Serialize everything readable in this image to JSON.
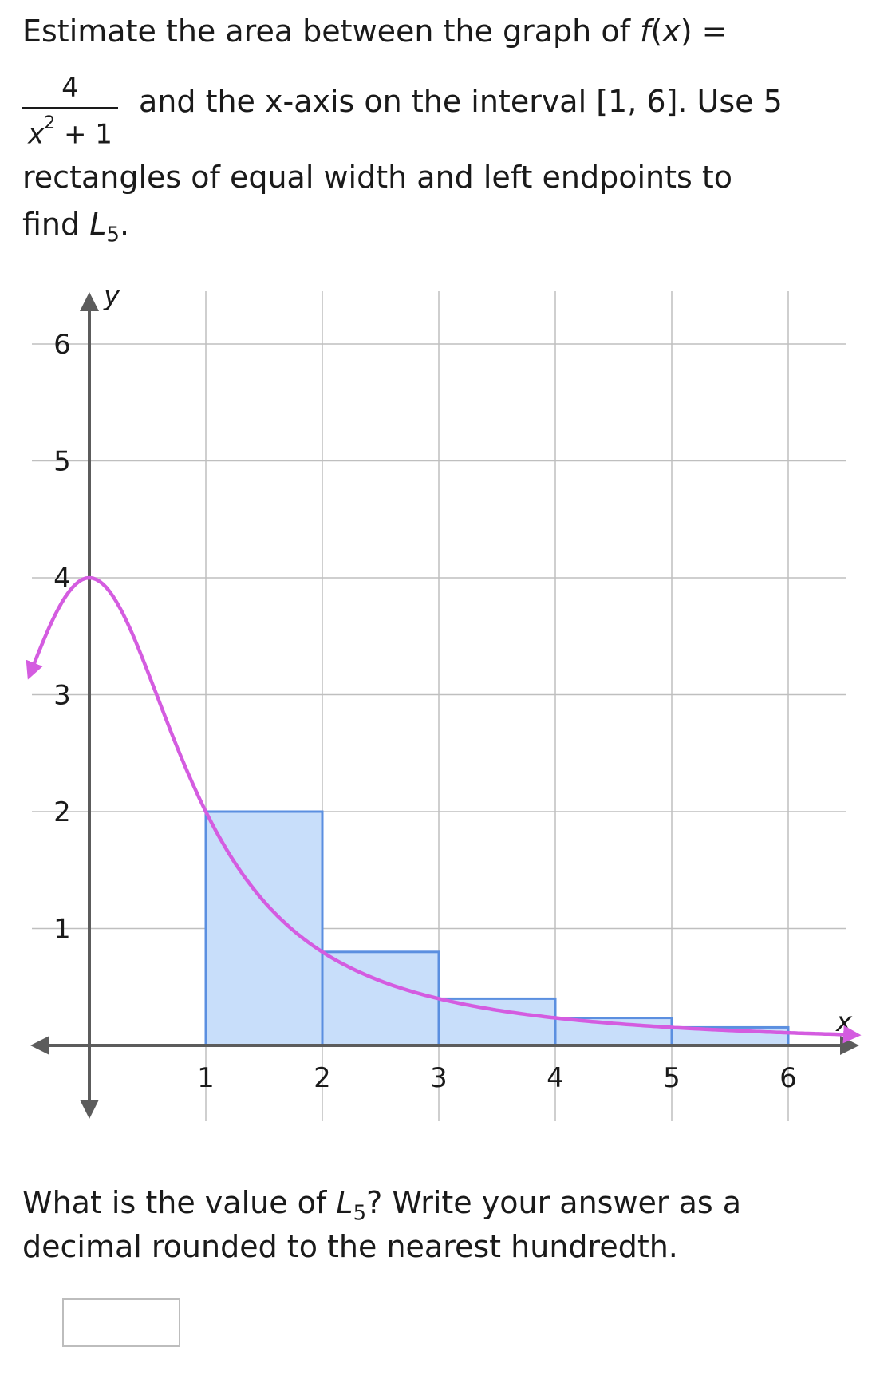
{
  "question": {
    "line1_prefix": "Estimate the area between the graph of ",
    "fx": "f",
    "fx_open": "(",
    "fx_var": "x",
    "fx_close": ") =",
    "frac_num": "4",
    "frac_den_var": "x",
    "frac_den_exp": "2",
    "frac_den_rest": " + 1",
    "line2_text": "and the x-axis on the interval [1, 6]. Use 5",
    "line3_text": "rectangles of equal width and left endpoints to",
    "line4_prefix": "find ",
    "L": "L",
    "sub": "5",
    "line4_suffix": "."
  },
  "chart_data": {
    "type": "area",
    "function": "f(x) = 4/(x^2 + 1)",
    "xlabel": "x",
    "ylabel": "y",
    "xlim": [
      -0.5,
      6.6
    ],
    "ylim": [
      -0.5,
      6.4
    ],
    "x_ticks": [
      1,
      2,
      3,
      4,
      5,
      6
    ],
    "y_ticks": [
      1,
      2,
      3,
      4,
      5,
      6
    ],
    "grid": true,
    "rectangles": [
      {
        "x0": 1,
        "x1": 2,
        "height": 2.0
      },
      {
        "x0": 2,
        "x1": 3,
        "height": 0.8
      },
      {
        "x0": 3,
        "x1": 4,
        "height": 0.4
      },
      {
        "x0": 4,
        "x1": 5,
        "height": 0.235
      },
      {
        "x0": 5,
        "x1": 6,
        "height": 0.154
      }
    ],
    "colors": {
      "curve": "#d45ce0",
      "rect_fill": "#c8defa",
      "rect_stroke": "#5b8fe0",
      "axis": "#5c5c5c",
      "grid": "#bfbfbf"
    }
  },
  "prompt2": {
    "line1_prefix": "What is the value of ",
    "L": "L",
    "sub": "5",
    "line1_suffix": "? Write your answer as a",
    "line2": "decimal rounded to the nearest hundredth."
  },
  "answer": {
    "value": ""
  }
}
